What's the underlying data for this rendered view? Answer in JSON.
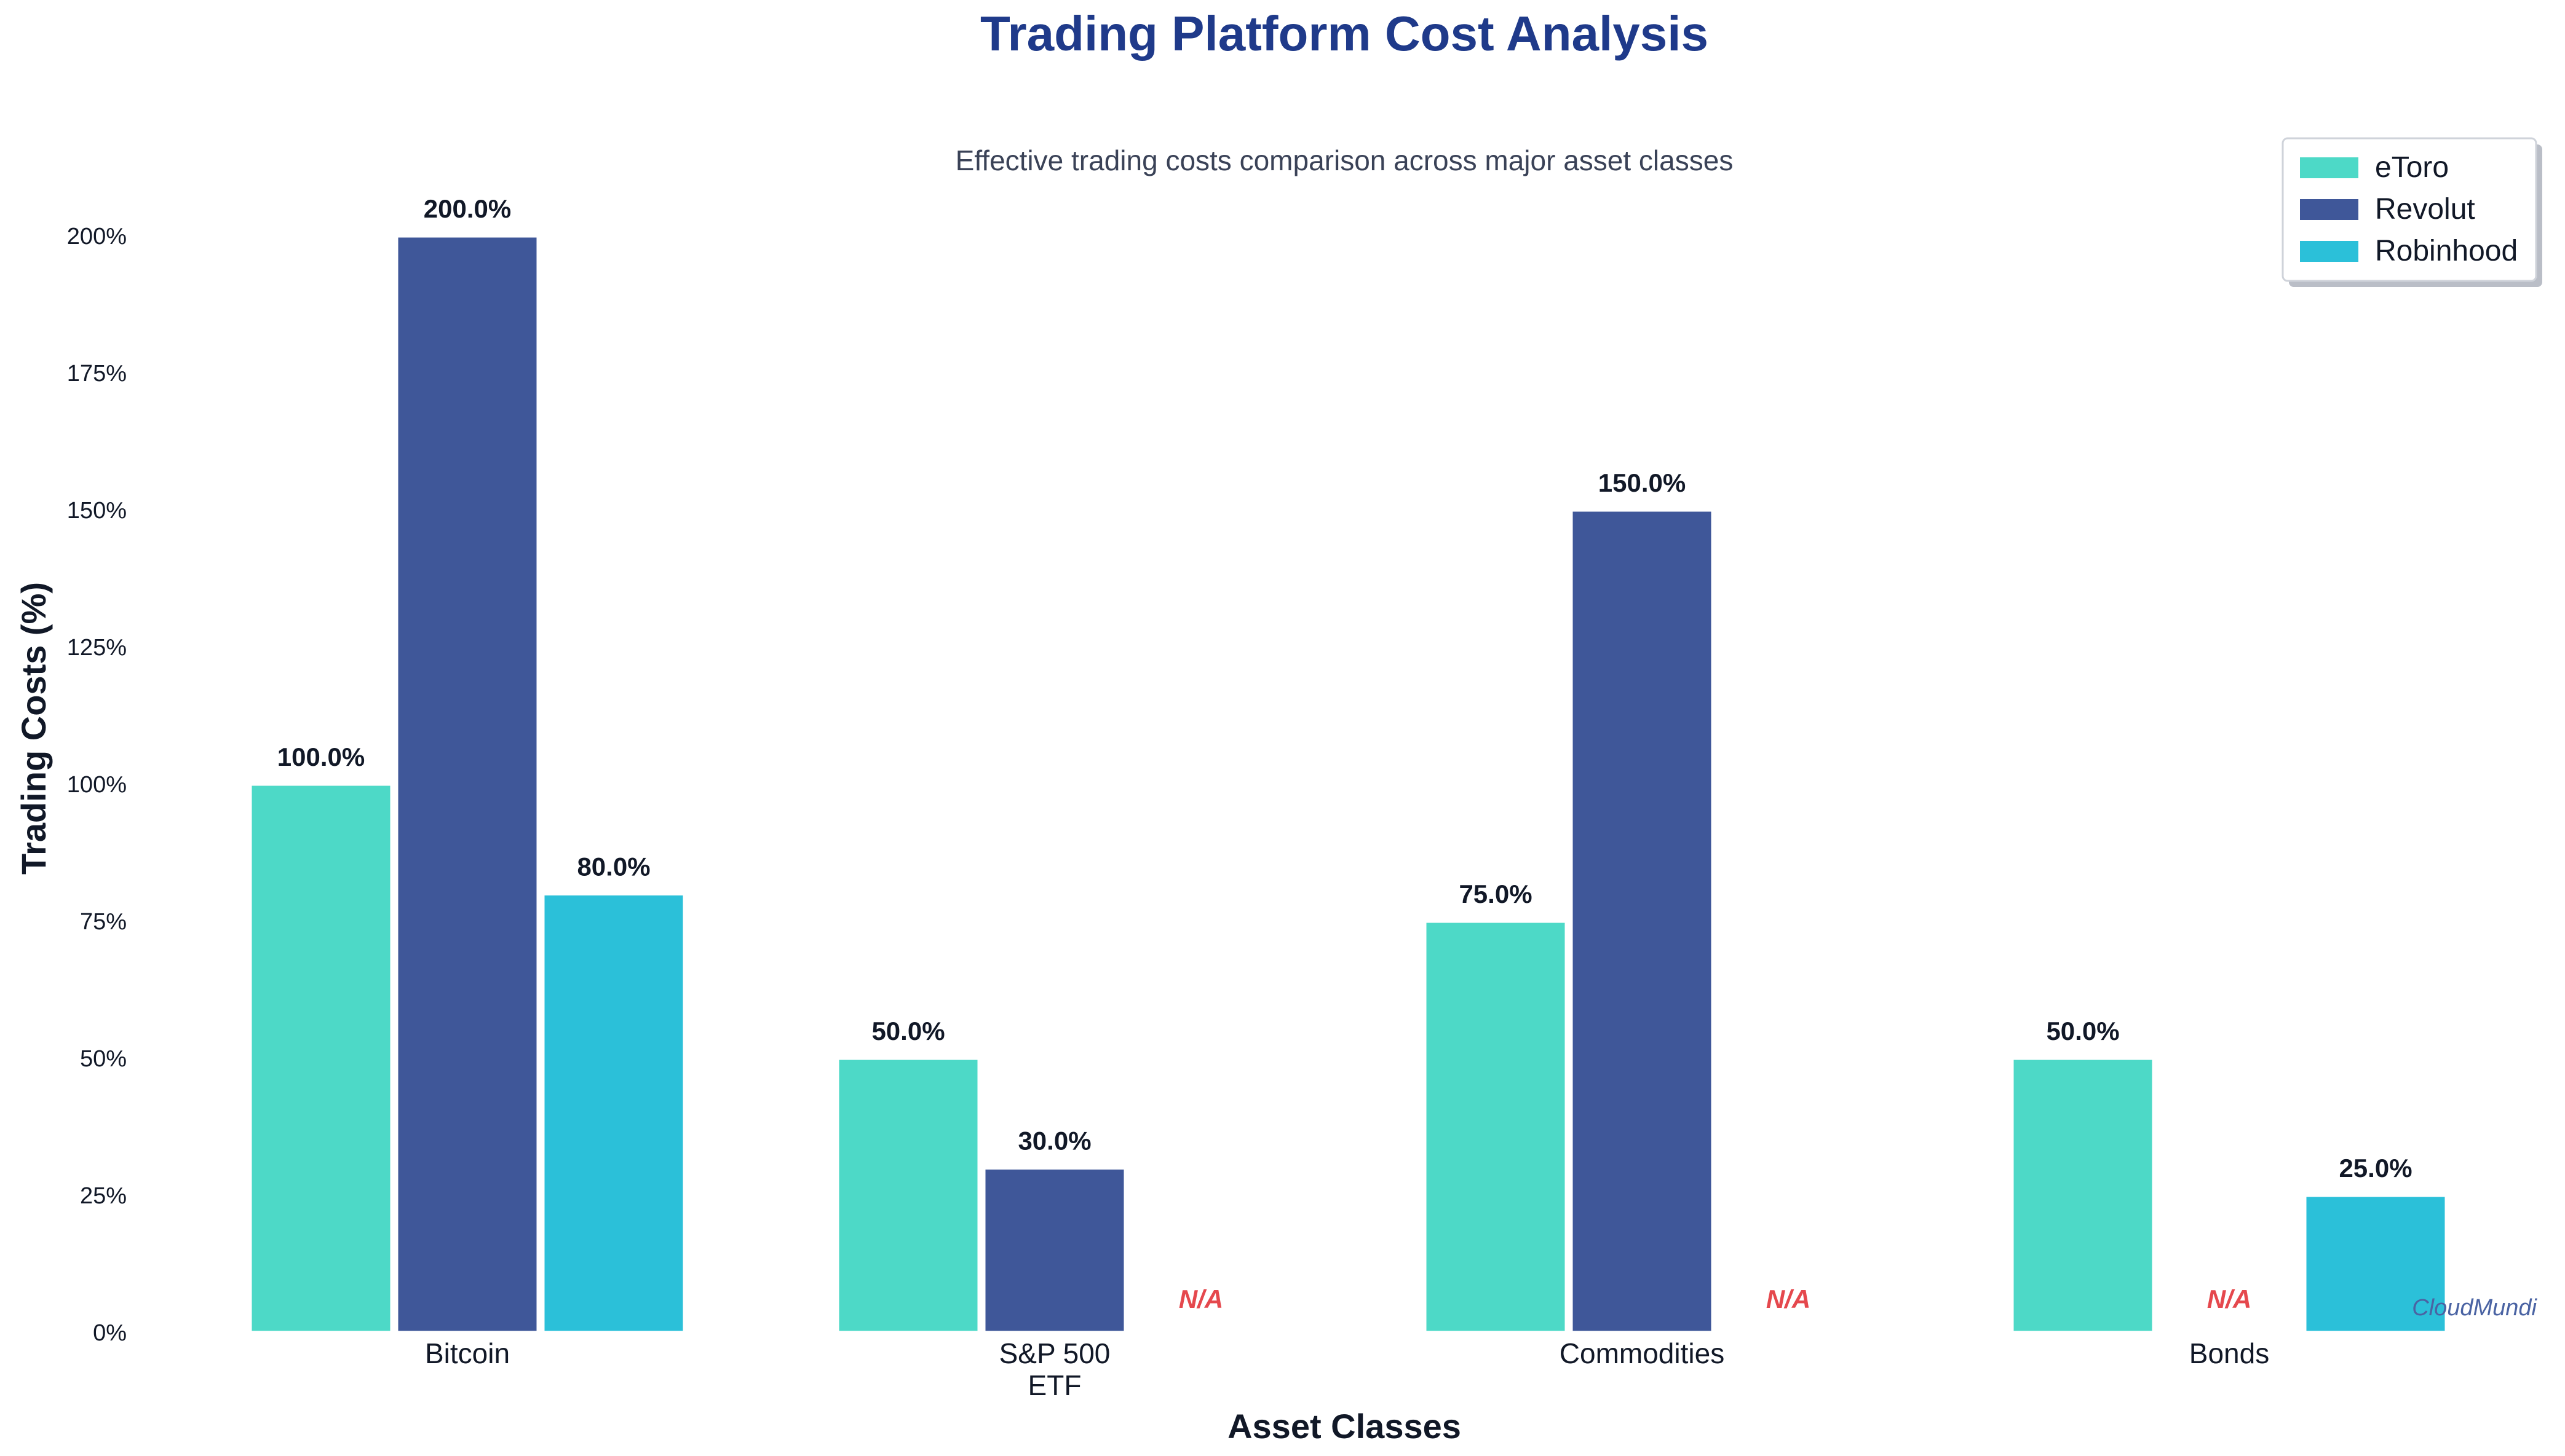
{
  "chart_data": {
    "type": "bar",
    "title": "Trading Platform Cost Analysis",
    "subtitle": "Effective trading costs comparison across major asset classes",
    "xlabel": "Asset Classes",
    "ylabel": "Trading Costs (%)",
    "categories": [
      [
        "Bitcoin"
      ],
      [
        "S&P 500",
        "ETF"
      ],
      [
        "Commodities"
      ],
      [
        "Bonds"
      ]
    ],
    "ylim": [
      0,
      200
    ],
    "yticks": [
      "0%",
      "25%",
      "50%",
      "75%",
      "100%",
      "125%",
      "150%",
      "175%",
      "200%"
    ],
    "series": [
      {
        "name": "eToro",
        "color": "#4DD9C7",
        "values": [
          100,
          50,
          75,
          50
        ]
      },
      {
        "name": "Revolut",
        "color": "#3F5799",
        "values": [
          200,
          30,
          150,
          null
        ]
      },
      {
        "name": "Robinhood",
        "color": "#2BC0D9",
        "values": [
          80,
          null,
          null,
          25
        ]
      }
    ],
    "data_labels": [
      [
        "100.0%",
        "200.0%",
        "80.0%"
      ],
      [
        "50.0%",
        "30.0%",
        "N/A"
      ],
      [
        "75.0%",
        "150.0%",
        "N/A"
      ],
      [
        "50.0%",
        "N/A",
        "25.0%"
      ]
    ],
    "legend_position": "top-right",
    "grid": false,
    "watermark": "CloudMundi",
    "colors": {
      "title": "#1F3A8A",
      "subtitle": "#3A4257",
      "axis_text": "#111827",
      "na_text": "#E5484D",
      "watermark": "#4A63A3",
      "bar_edge": "#FFFFFF"
    }
  }
}
